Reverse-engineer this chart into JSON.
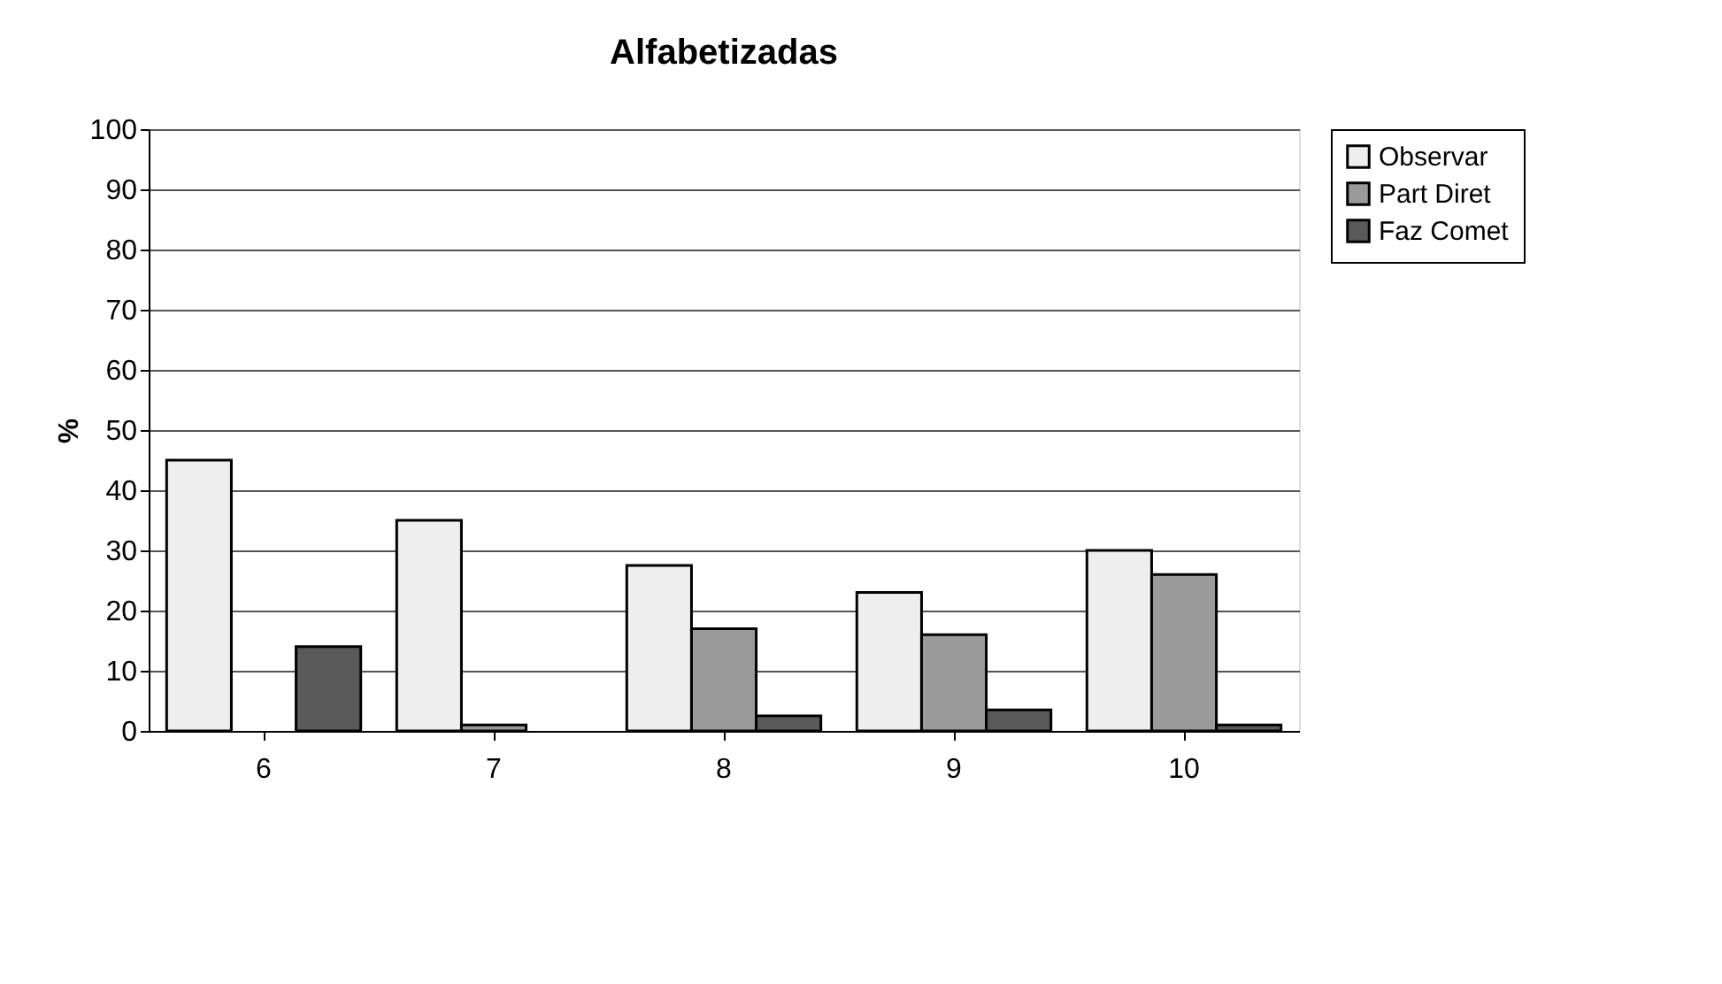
{
  "chart_data": {
    "type": "bar",
    "title": "Alfabetizadas",
    "ylabel": "%",
    "categories": [
      "6",
      "7",
      "8",
      "9",
      "10"
    ],
    "series": [
      {
        "name": "Observar",
        "color": "#eeeeee",
        "values": [
          45,
          35,
          27.5,
          23,
          30
        ]
      },
      {
        "name": "Part Diret",
        "color": "#9a9a9a",
        "values": [
          null,
          1,
          17,
          16,
          26
        ]
      },
      {
        "name": "Faz Comet",
        "color": "#5a5a5a",
        "values": [
          14,
          null,
          2.5,
          3.5,
          1
        ]
      }
    ],
    "ylim": [
      0,
      100
    ],
    "yticks": [
      0,
      10,
      20,
      30,
      40,
      50,
      60,
      70,
      80,
      90,
      100
    ],
    "grid": "y",
    "legend": "right"
  }
}
